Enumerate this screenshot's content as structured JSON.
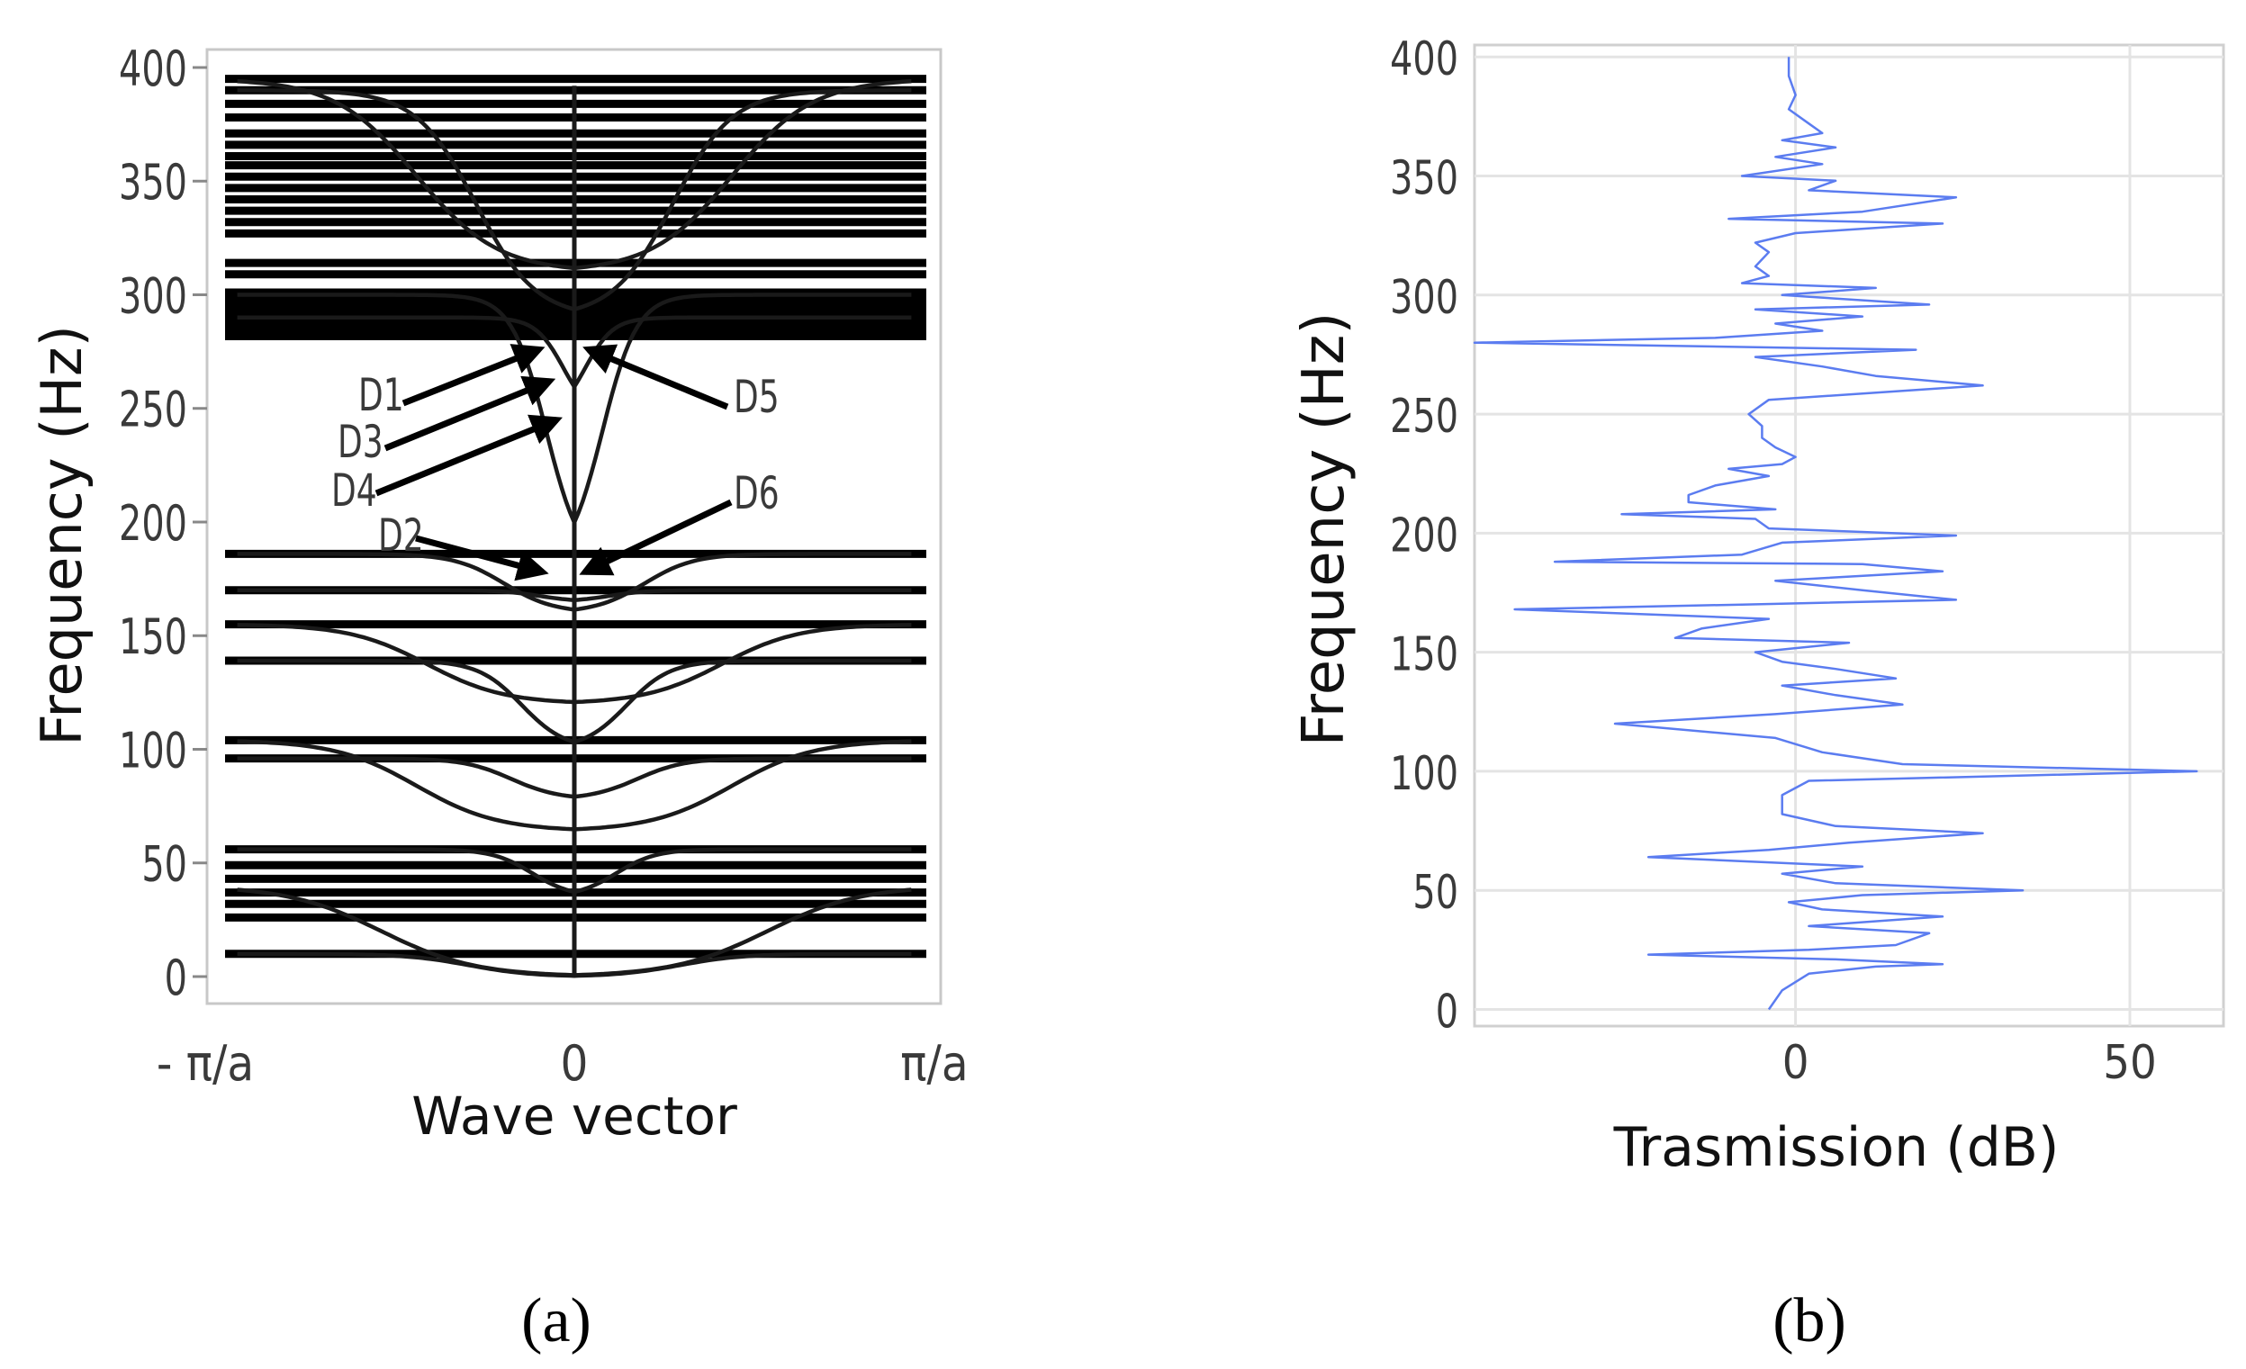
{
  "chart_data": [
    {
      "panel": "(a)",
      "type": "line",
      "title": "",
      "xlabel": "Wave vector",
      "ylabel": "Frequency (Hz)",
      "xticks": [
        "- π/a",
        "0",
        "π/a"
      ],
      "ylim": [
        0,
        400
      ],
      "yticks": [
        0,
        50,
        100,
        150,
        200,
        250,
        300,
        350,
        400
      ],
      "flat_bands": [
        10,
        26,
        32,
        37,
        43,
        49,
        56,
        96,
        104,
        139,
        155,
        170,
        186,
        282,
        286,
        290,
        294,
        298,
        301,
        309,
        314,
        327,
        332,
        337,
        342,
        347,
        352,
        357,
        361,
        366,
        371,
        378,
        384,
        390,
        395
      ],
      "dispersive_branches": [
        {
          "low": 0,
          "high": 40,
          "width": 0.55
        },
        {
          "low": 0,
          "high": 10,
          "width": 0.3
        },
        {
          "low": 35,
          "high": 56,
          "width": 0.12
        },
        {
          "low": 64,
          "high": 104,
          "width": 0.45
        },
        {
          "low": 78,
          "high": 96,
          "width": 0.18
        },
        {
          "low": 120,
          "high": 155,
          "width": 0.42
        },
        {
          "low": 100,
          "high": 139,
          "width": 0.15
        },
        {
          "low": 160,
          "high": 186,
          "width": 0.2
        },
        {
          "low": 165,
          "high": 170,
          "width": 0.1
        },
        {
          "low": 180,
          "high": 300,
          "width": 0.08
        },
        {
          "low": 245,
          "high": 290,
          "width": 0.03
        },
        {
          "low": 290,
          "high": 390,
          "width": 0.28
        },
        {
          "low": 310,
          "high": 395,
          "width": 0.45
        }
      ],
      "annotations": [
        {
          "label": "D1",
          "target": [
            -0.1,
            276
          ]
        },
        {
          "label": "D3",
          "target": [
            -0.07,
            262
          ]
        },
        {
          "label": "D4",
          "target": [
            -0.05,
            245
          ]
        },
        {
          "label": "D2",
          "target": [
            -0.09,
            178
          ]
        },
        {
          "label": "D5",
          "target": [
            0.04,
            276
          ]
        },
        {
          "label": "D6",
          "target": [
            0.03,
            178
          ]
        }
      ],
      "caption": "(a)"
    },
    {
      "panel": "(b)",
      "type": "line",
      "title": "",
      "xlabel": "Trasmission  (dB)",
      "ylabel": "Frequency (Hz)",
      "xlim": [
        -48,
        64
      ],
      "xticks": [
        0,
        50
      ],
      "ylim": [
        -7,
        405
      ],
      "yticks": [
        0,
        50,
        100,
        150,
        200,
        250,
        300,
        350,
        400
      ],
      "color": "#5b7cf0",
      "series": [
        {
          "name": "Transmission",
          "points": [
            [
              -4,
              0
            ],
            [
              -2,
              8
            ],
            [
              2,
              15
            ],
            [
              12,
              18
            ],
            [
              22,
              19
            ],
            [
              6,
              21
            ],
            [
              -22,
              23
            ],
            [
              2,
              25
            ],
            [
              15,
              27
            ],
            [
              20,
              32
            ],
            [
              2,
              35
            ],
            [
              22,
              39
            ],
            [
              4,
              42
            ],
            [
              -1,
              45
            ],
            [
              10,
              48
            ],
            [
              34,
              50
            ],
            [
              6,
              53
            ],
            [
              -2,
              57
            ],
            [
              10,
              60
            ],
            [
              -22,
              64
            ],
            [
              -4,
              67
            ],
            [
              8,
              70
            ],
            [
              28,
              74
            ],
            [
              6,
              77
            ],
            [
              -2,
              82
            ],
            [
              -2,
              90
            ],
            [
              2,
              96
            ],
            [
              60,
              100
            ],
            [
              16,
              103
            ],
            [
              4,
              108
            ],
            [
              -3,
              114
            ],
            [
              -27,
              120
            ],
            [
              -3,
              124
            ],
            [
              16,
              128
            ],
            [
              6,
              132
            ],
            [
              -2,
              136
            ],
            [
              15,
              139
            ],
            [
              6,
              143
            ],
            [
              -2,
              146
            ],
            [
              -6,
              150
            ],
            [
              8,
              154
            ],
            [
              -18,
              156
            ],
            [
              -14,
              160
            ],
            [
              -4,
              164
            ],
            [
              -42,
              168
            ],
            [
              -8,
              170
            ],
            [
              24,
              172
            ],
            [
              10,
              176
            ],
            [
              -3,
              180
            ],
            [
              22,
              184
            ],
            [
              10,
              187
            ],
            [
              -36,
              188
            ],
            [
              -8,
              191
            ],
            [
              -2,
              196
            ],
            [
              24,
              199
            ],
            [
              -4,
              202
            ],
            [
              -6,
              206
            ],
            [
              -26,
              208
            ],
            [
              -3,
              210
            ],
            [
              -16,
              213
            ],
            [
              -16,
              216
            ],
            [
              -12,
              220
            ],
            [
              -4,
              224
            ],
            [
              -10,
              227
            ],
            [
              -2,
              229
            ],
            [
              0,
              232
            ],
            [
              -3,
              236
            ],
            [
              -5,
              240
            ],
            [
              -5,
              245
            ],
            [
              -7,
              250
            ],
            [
              -4,
              256
            ],
            [
              28,
              262
            ],
            [
              12,
              266
            ],
            [
              4,
              270
            ],
            [
              -6,
              274
            ],
            [
              18,
              277
            ],
            [
              -48,
              280
            ],
            [
              -12,
              282
            ],
            [
              4,
              285
            ],
            [
              -3,
              288
            ],
            [
              10,
              291
            ],
            [
              -6,
              294
            ],
            [
              20,
              296
            ],
            [
              -2,
              300
            ],
            [
              12,
              303
            ],
            [
              -8,
              305
            ],
            [
              -4,
              308
            ],
            [
              -6,
              312
            ],
            [
              -4,
              318
            ],
            [
              -6,
              322
            ],
            [
              0,
              326
            ],
            [
              22,
              330
            ],
            [
              -10,
              332
            ],
            [
              10,
              335
            ],
            [
              24,
              341
            ],
            [
              2,
              344
            ],
            [
              6,
              348
            ],
            [
              -8,
              350
            ],
            [
              4,
              355
            ],
            [
              -3,
              358
            ],
            [
              6,
              362
            ],
            [
              -2,
              365
            ],
            [
              4,
              368
            ],
            [
              2,
              372
            ],
            [
              -1,
              378
            ],
            [
              0,
              384
            ],
            [
              -1,
              392
            ],
            [
              -1,
              400
            ]
          ]
        }
      ],
      "caption": "(b)"
    }
  ]
}
